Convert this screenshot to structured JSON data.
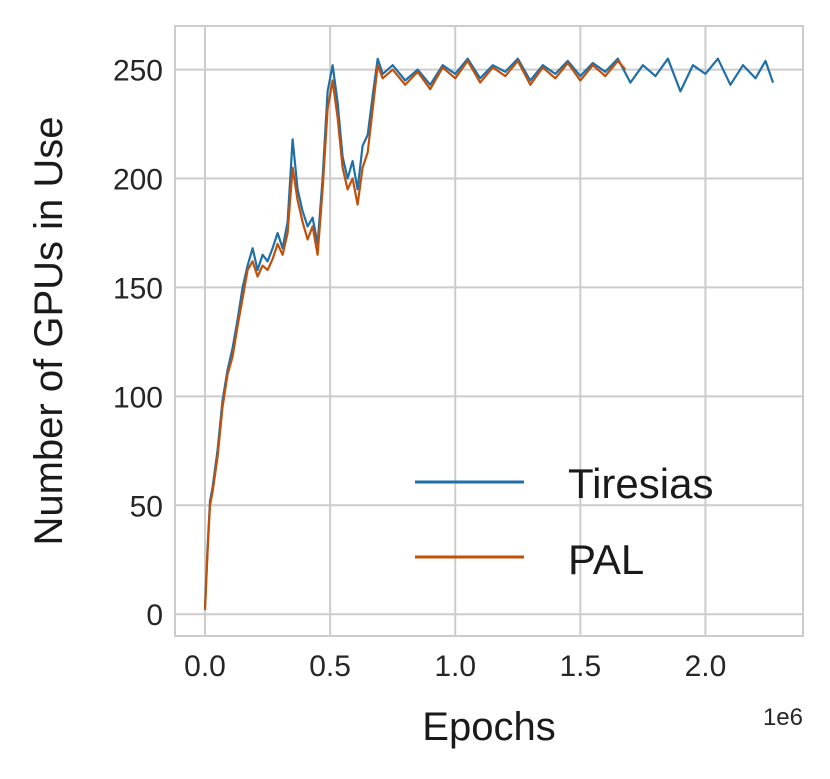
{
  "chart_data": {
    "type": "line",
    "title": "",
    "xlabel": "Epochs",
    "ylabel": "Number of GPUs in Use",
    "x_offset_label": "1e6",
    "xlim": [
      -120000,
      2390000
    ],
    "ylim": [
      -10,
      270
    ],
    "x_ticks": [
      0,
      500000,
      1000000,
      1500000,
      2000000
    ],
    "x_tick_labels": [
      "0.0",
      "0.5",
      "1.0",
      "1.5",
      "2.0"
    ],
    "y_ticks": [
      0,
      50,
      100,
      150,
      200,
      250
    ],
    "y_tick_labels": [
      "0",
      "50",
      "100",
      "150",
      "200",
      "250"
    ],
    "grid": true,
    "legend_position": "lower-right",
    "series": [
      {
        "name": "Tiresias",
        "color": "#1f6fa8",
        "x": [
          0,
          10000,
          20000,
          30000,
          50000,
          70000,
          90000,
          110000,
          130000,
          150000,
          170000,
          190000,
          210000,
          230000,
          250000,
          270000,
          290000,
          310000,
          330000,
          350000,
          370000,
          390000,
          410000,
          430000,
          450000,
          470000,
          490000,
          510000,
          530000,
          550000,
          570000,
          590000,
          610000,
          630000,
          650000,
          670000,
          690000,
          710000,
          750000,
          800000,
          850000,
          900000,
          950000,
          1000000,
          1050000,
          1100000,
          1150000,
          1200000,
          1250000,
          1300000,
          1350000,
          1400000,
          1450000,
          1500000,
          1550000,
          1600000,
          1650000,
          1700000,
          1750000,
          1800000,
          1850000,
          1900000,
          1950000,
          2000000,
          2050000,
          2100000,
          2150000,
          2200000,
          2240000,
          2270000
        ],
        "y": [
          3,
          30,
          52,
          58,
          75,
          98,
          112,
          122,
          135,
          150,
          160,
          168,
          158,
          165,
          162,
          168,
          175,
          168,
          180,
          218,
          195,
          185,
          178,
          182,
          170,
          200,
          240,
          252,
          235,
          210,
          200,
          208,
          195,
          215,
          220,
          238,
          255,
          248,
          252,
          245,
          250,
          243,
          252,
          248,
          255,
          246,
          252,
          249,
          255,
          245,
          252,
          248,
          254,
          247,
          253,
          249,
          255,
          244,
          252,
          247,
          255,
          240,
          252,
          248,
          255,
          243,
          252,
          246,
          254,
          244
        ]
      },
      {
        "name": "PAL",
        "color": "#c2500a",
        "x": [
          0,
          10000,
          20000,
          30000,
          50000,
          70000,
          90000,
          110000,
          130000,
          150000,
          170000,
          190000,
          210000,
          230000,
          250000,
          270000,
          290000,
          310000,
          330000,
          350000,
          370000,
          390000,
          410000,
          430000,
          450000,
          470000,
          490000,
          510000,
          530000,
          550000,
          570000,
          590000,
          610000,
          630000,
          650000,
          670000,
          690000,
          710000,
          750000,
          800000,
          850000,
          900000,
          950000,
          1000000,
          1050000,
          1100000,
          1150000,
          1200000,
          1250000,
          1300000,
          1350000,
          1400000,
          1450000,
          1500000,
          1550000,
          1600000,
          1650000,
          1680000
        ],
        "y": [
          2,
          28,
          50,
          56,
          72,
          95,
          110,
          118,
          132,
          145,
          158,
          162,
          155,
          160,
          158,
          163,
          170,
          165,
          175,
          205,
          190,
          180,
          172,
          178,
          165,
          195,
          232,
          245,
          228,
          205,
          195,
          200,
          188,
          205,
          212,
          232,
          252,
          246,
          250,
          243,
          249,
          241,
          251,
          246,
          254,
          244,
          251,
          247,
          254,
          243,
          251,
          246,
          253,
          245,
          252,
          247,
          254,
          250
        ]
      }
    ]
  }
}
